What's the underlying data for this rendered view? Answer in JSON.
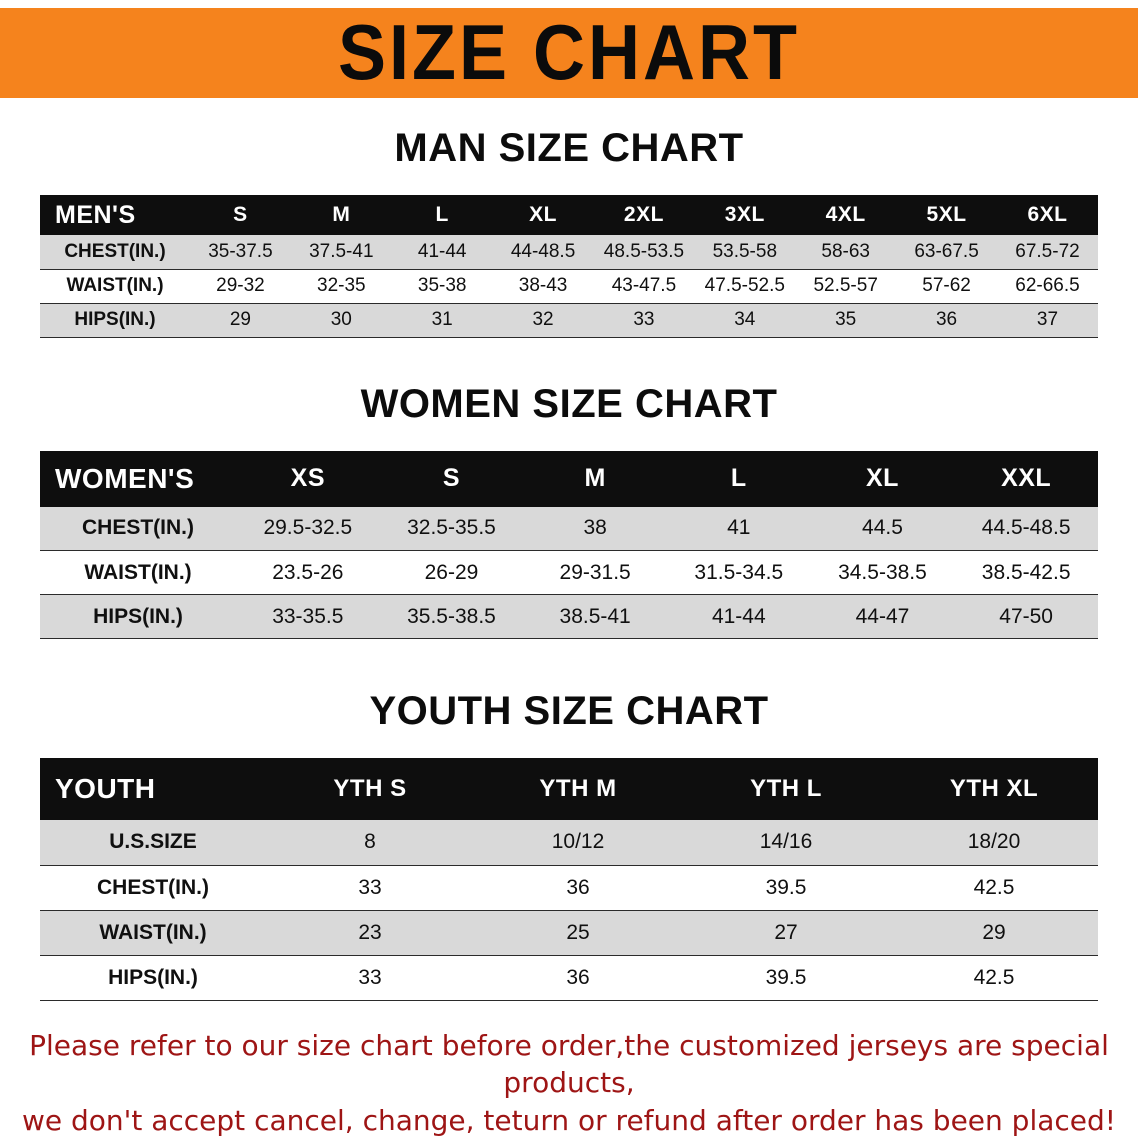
{
  "banner": {
    "title": "SIZE CHART"
  },
  "colors": {
    "banner_bg": "#F5831D",
    "title_text": "#0B0B0B",
    "header_bg": "#0E0E0E",
    "row_shade": "#D9D9D9",
    "note_text": "#9E1515"
  },
  "sections": [
    {
      "id": "men",
      "heading": "MAN SIZE CHART",
      "table": {
        "header": [
          "MEN'S",
          "S",
          "M",
          "L",
          "XL",
          "2XL",
          "3XL",
          "4XL",
          "5XL",
          "6XL"
        ],
        "rows": [
          {
            "label": "CHEST(IN.)",
            "values": [
              "35-37.5",
              "37.5-41",
              "41-44",
              "44-48.5",
              "48.5-53.5",
              "53.5-58",
              "58-63",
              "63-67.5",
              "67.5-72"
            ]
          },
          {
            "label": "WAIST(IN.)",
            "values": [
              "29-32",
              "32-35",
              "35-38",
              "38-43",
              "43-47.5",
              "47.5-52.5",
              "52.5-57",
              "57-62",
              "62-66.5"
            ]
          },
          {
            "label": "HIPS(IN.)",
            "values": [
              "29",
              "30",
              "31",
              "32",
              "33",
              "34",
              "35",
              "36",
              "37"
            ]
          }
        ]
      }
    },
    {
      "id": "women",
      "heading": "WOMEN SIZE CHART",
      "table": {
        "header": [
          "WOMEN'S",
          "XS",
          "S",
          "M",
          "L",
          "XL",
          "XXL"
        ],
        "rows": [
          {
            "label": "CHEST(IN.)",
            "values": [
              "29.5-32.5",
              "32.5-35.5",
              "38",
              "41",
              "44.5",
              "44.5-48.5"
            ]
          },
          {
            "label": "WAIST(IN.)",
            "values": [
              "23.5-26",
              "26-29",
              "29-31.5",
              "31.5-34.5",
              "34.5-38.5",
              "38.5-42.5"
            ]
          },
          {
            "label": "HIPS(IN.)",
            "values": [
              "33-35.5",
              "35.5-38.5",
              "38.5-41",
              "41-44",
              "44-47",
              "47-50"
            ]
          }
        ]
      }
    },
    {
      "id": "youth",
      "heading": "YOUTH SIZE CHART",
      "table": {
        "header": [
          "YOUTH",
          "YTH S",
          "YTH M",
          "YTH L",
          "YTH XL"
        ],
        "rows": [
          {
            "label": "U.S.SIZE",
            "values": [
              "8",
              "10/12",
              "14/16",
              "18/20"
            ]
          },
          {
            "label": "CHEST(IN.)",
            "values": [
              "33",
              "36",
              "39.5",
              "42.5"
            ]
          },
          {
            "label": "WAIST(IN.)",
            "values": [
              "23",
              "25",
              "27",
              "29"
            ]
          },
          {
            "label": "HIPS(IN.)",
            "values": [
              "33",
              "36",
              "39.5",
              "42.5"
            ]
          }
        ]
      }
    }
  ],
  "footnote": {
    "line1": "Please refer to our size chart before order,the customized jerseys are special products,",
    "line2": "we don't accept cancel, change, teturn or refund after order has been placed!"
  }
}
